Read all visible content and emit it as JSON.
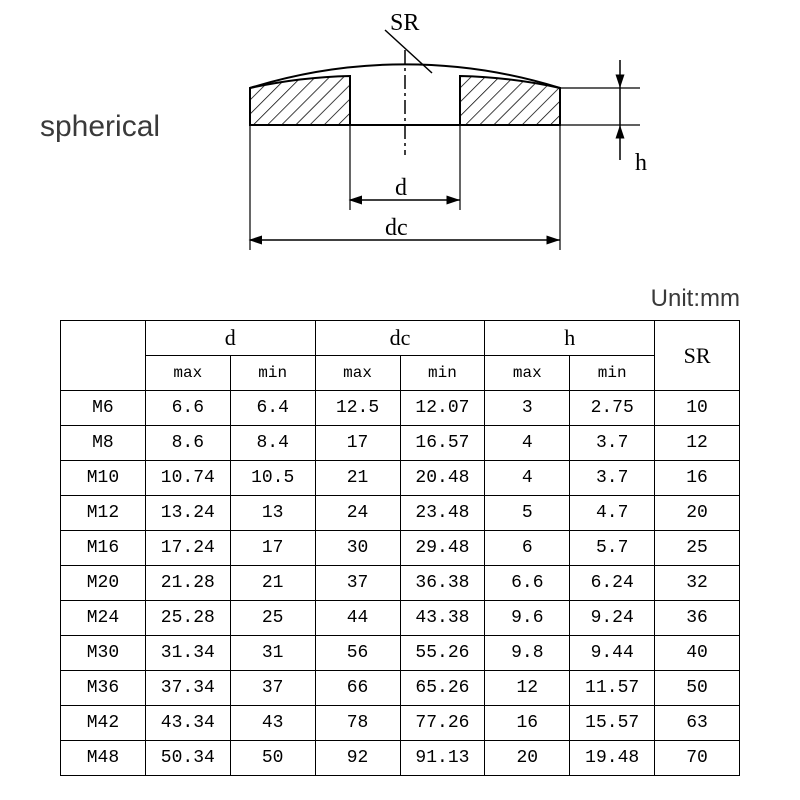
{
  "title": "spherical",
  "unit_label": "Unit:mm",
  "diagram": {
    "labels": {
      "SR": "SR",
      "d": "d",
      "dc": "dc",
      "h": "h"
    },
    "stroke": "#000000",
    "stroke_width": 2,
    "hatch_spacing": 8,
    "font_size": 22
  },
  "table": {
    "header_groups": [
      "",
      "d",
      "dc",
      "h",
      "SR"
    ],
    "sub_headers": [
      "max",
      "min",
      "max",
      "min",
      "max",
      "min"
    ],
    "col_widths_pct": [
      12.5,
      12.5,
      12.5,
      12.5,
      12.5,
      12.5,
      12.5,
      12.5
    ],
    "rows": [
      {
        "label": "M6",
        "d_max": "6.6",
        "d_min": "6.4",
        "dc_max": "12.5",
        "dc_min": "12.07",
        "h_max": "3",
        "h_min": "2.75",
        "sr": "10"
      },
      {
        "label": "M8",
        "d_max": "8.6",
        "d_min": "8.4",
        "dc_max": "17",
        "dc_min": "16.57",
        "h_max": "4",
        "h_min": "3.7",
        "sr": "12"
      },
      {
        "label": "M10",
        "d_max": "10.74",
        "d_min": "10.5",
        "dc_max": "21",
        "dc_min": "20.48",
        "h_max": "4",
        "h_min": "3.7",
        "sr": "16"
      },
      {
        "label": "M12",
        "d_max": "13.24",
        "d_min": "13",
        "dc_max": "24",
        "dc_min": "23.48",
        "h_max": "5",
        "h_min": "4.7",
        "sr": "20"
      },
      {
        "label": "M16",
        "d_max": "17.24",
        "d_min": "17",
        "dc_max": "30",
        "dc_min": "29.48",
        "h_max": "6",
        "h_min": "5.7",
        "sr": "25"
      },
      {
        "label": "M20",
        "d_max": "21.28",
        "d_min": "21",
        "dc_max": "37",
        "dc_min": "36.38",
        "h_max": "6.6",
        "h_min": "6.24",
        "sr": "32"
      },
      {
        "label": "M24",
        "d_max": "25.28",
        "d_min": "25",
        "dc_max": "44",
        "dc_min": "43.38",
        "h_max": "9.6",
        "h_min": "9.24",
        "sr": "36"
      },
      {
        "label": "M30",
        "d_max": "31.34",
        "d_min": "31",
        "dc_max": "56",
        "dc_min": "55.26",
        "h_max": "9.8",
        "h_min": "9.44",
        "sr": "40"
      },
      {
        "label": "M36",
        "d_max": "37.34",
        "d_min": "37",
        "dc_max": "66",
        "dc_min": "65.26",
        "h_max": "12",
        "h_min": "11.57",
        "sr": "50"
      },
      {
        "label": "M42",
        "d_max": "43.34",
        "d_min": "43",
        "dc_max": "78",
        "dc_min": "77.26",
        "h_max": "16",
        "h_min": "15.57",
        "sr": "63"
      },
      {
        "label": "M48",
        "d_max": "50.34",
        "d_min": "50",
        "dc_max": "92",
        "dc_min": "91.13",
        "h_max": "20",
        "h_min": "19.48",
        "sr": "70"
      }
    ]
  },
  "colors": {
    "text": "#000000",
    "title_text": "#3a3a3a",
    "background": "#ffffff",
    "border": "#000000"
  },
  "font_sizes": {
    "title": 30,
    "unit": 24,
    "header": 22,
    "subhead": 16,
    "cell": 18
  }
}
